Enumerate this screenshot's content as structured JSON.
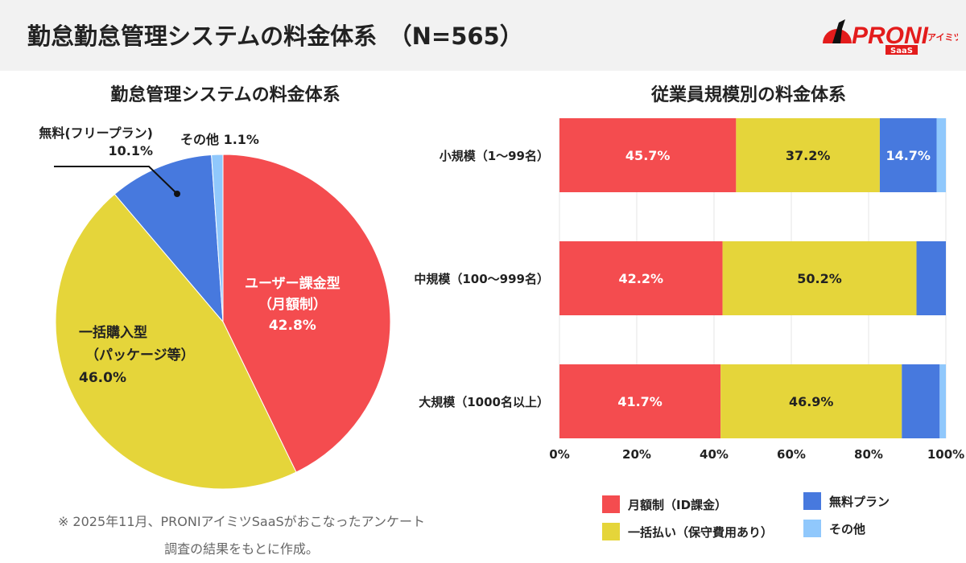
{
  "header": {
    "title": "勤怠勤怠管理システムの料金体系　（N=565）",
    "logo_text": "PRONIアイミツ SaaS"
  },
  "colors": {
    "monthly": "#f44c4f",
    "onetime": "#e5d53a",
    "free": "#4779de",
    "other": "#90c8fc"
  },
  "chart_data": [
    {
      "type": "pie",
      "title": "勤怠管理システムの料金体系",
      "slices": [
        {
          "label": "ユーザー課金型（月額制）",
          "label_lines": [
            "ユーザー課金型",
            "（月額制）",
            "42.8%"
          ],
          "value": 42.8
        },
        {
          "label": "一括購入型（パッケージ等）",
          "label_lines": [
            "一括購入型",
            "（パッケージ等）",
            "46.0%"
          ],
          "value": 46.0
        },
        {
          "label": "無料(フリープラン)",
          "label_lines": [
            "無料(フリープラン)",
            "10.1%"
          ],
          "value": 10.1
        },
        {
          "label": "その他",
          "label_lines": [
            "その他  1.1%"
          ],
          "value": 1.1
        }
      ]
    },
    {
      "type": "bar",
      "orientation": "horizontal",
      "stacked": true,
      "title": "従業員規模別の料金体系",
      "categories": [
        "小規模（1〜99名）",
        "中規模（100〜999名）",
        "大規模（1000名以上）"
      ],
      "xlim": [
        0,
        100
      ],
      "xticks": [
        "0%",
        "20%",
        "40%",
        "60%",
        "80%",
        "100%"
      ],
      "grid": true,
      "series": [
        {
          "name": "月額制（ID課金）",
          "values": [
            45.7,
            42.2,
            41.7
          ],
          "labels": [
            "45.7%",
            "42.2%",
            "41.7%"
          ]
        },
        {
          "name": "一括払い（保守費用あり）",
          "values": [
            37.2,
            50.2,
            46.9
          ],
          "labels": [
            "37.2%",
            "50.2%",
            "46.9%"
          ]
        },
        {
          "name": "無料プラン",
          "values": [
            14.7,
            7.6,
            9.8
          ],
          "labels": [
            "14.7%",
            "",
            ""
          ]
        },
        {
          "name": "その他",
          "values": [
            2.4,
            0,
            1.6
          ],
          "labels": [
            "",
            "",
            ""
          ]
        }
      ],
      "legend_position": "bottom"
    }
  ],
  "footnote": [
    "※ 2025年11月、PRONIアイミツSaaSがおこなったアンケート",
    "調査の結果をもとに作成。"
  ]
}
